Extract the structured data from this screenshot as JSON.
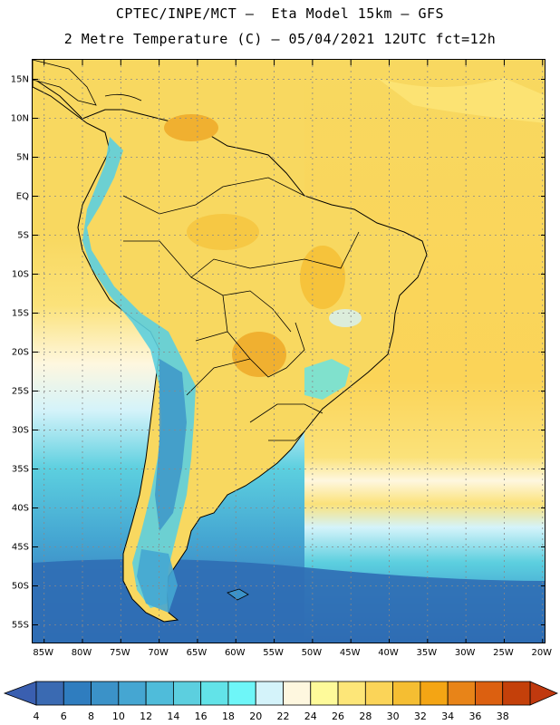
{
  "header": {
    "line1": "CPTEC/INPE/MCT –  Eta Model 15km – GFS",
    "line2": "2 Metre Temperature (C) – 05/04/2021 12UTC fct=12h"
  },
  "map": {
    "lat_labels": [
      "15N",
      "10N",
      "5N",
      "EQ",
      "5S",
      "10S",
      "15S",
      "20S",
      "25S",
      "30S",
      "35S",
      "40S",
      "45S",
      "50S",
      "55S"
    ],
    "lon_labels": [
      "85W",
      "80W",
      "75W",
      "70W",
      "65W",
      "60W",
      "55W",
      "50W",
      "45W",
      "40W",
      "35W",
      "30W",
      "25W",
      "20W"
    ],
    "lat_range": [
      17.5,
      -57.5
    ],
    "lon_range": [
      -86.5,
      -19.5
    ]
  },
  "colorbar": {
    "levels": [
      "4",
      "6",
      "8",
      "10",
      "12",
      "14",
      "16",
      "18",
      "20",
      "22",
      "24",
      "26",
      "28",
      "30",
      "32",
      "34",
      "36",
      "38"
    ],
    "colors": [
      "#3a6ab2",
      "#2f7dbf",
      "#3b92c8",
      "#45a6d2",
      "#4fbcda",
      "#5ccfdf",
      "#62e3e8",
      "#6ef6f8",
      "#d4f3fa",
      "#fef7df",
      "#fefa9a",
      "#fde678",
      "#fbd458",
      "#f5be32",
      "#f4a514",
      "#e88418",
      "#dc6010",
      "#c4400a"
    ],
    "low_end_color": "#3a5fb0",
    "high_end_color": "#c0390e"
  },
  "colors": {
    "hot": "#f0b030",
    "warm": "#f8d860",
    "mild": "#fbe27a",
    "cool": "#fef7df",
    "cold_sea": "#5ccfdf",
    "colder_sea": "#45a6d2",
    "deep_cold": "#2f6db4"
  }
}
